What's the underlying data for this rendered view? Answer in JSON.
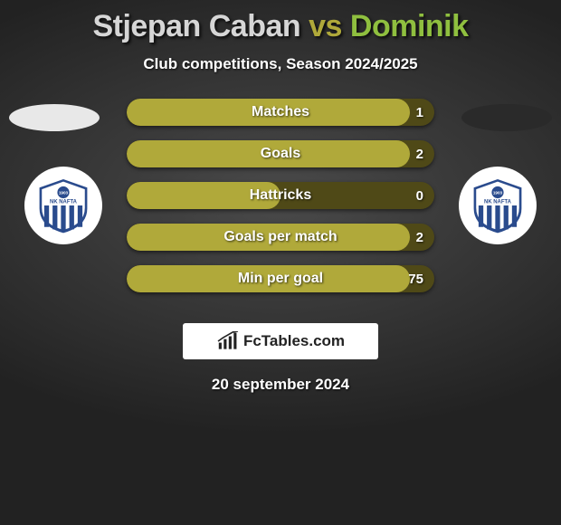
{
  "title": {
    "player1": "Stjepan Caban",
    "vs": "vs",
    "player2": "Dominik",
    "color1": "#d6d6d6",
    "color_vs": "#b0a93a",
    "color2": "#8fbf3f"
  },
  "subtitle": "Club competitions, Season 2024/2025",
  "bars": {
    "track_color": "#4f4917",
    "fill_color": "#b0a93a",
    "rows": [
      {
        "label": "Matches",
        "left": "",
        "right": "1",
        "fill_pct": 92
      },
      {
        "label": "Goals",
        "left": "",
        "right": "2",
        "fill_pct": 92
      },
      {
        "label": "Hattricks",
        "left": "",
        "right": "0",
        "fill_pct": 50
      },
      {
        "label": "Goals per match",
        "left": "",
        "right": "2",
        "fill_pct": 92
      },
      {
        "label": "Min per goal",
        "left": "",
        "right": "75",
        "fill_pct": 92
      }
    ]
  },
  "ellipses": {
    "left_color": "#e8e8e8",
    "right_color": "#2a2a2a"
  },
  "crest": {
    "name": "NK NAFTA",
    "year": "1903",
    "shield_color": "#2a4b8d",
    "stripe_color": "#2a4b8d",
    "bg_color": "#ffffff"
  },
  "footer": {
    "brand": "FcTables.com",
    "icon_color": "#222222"
  },
  "date": "20 september 2024",
  "background": {
    "center": "#4a4a4a",
    "mid": "#383838",
    "edge": "#222222"
  }
}
